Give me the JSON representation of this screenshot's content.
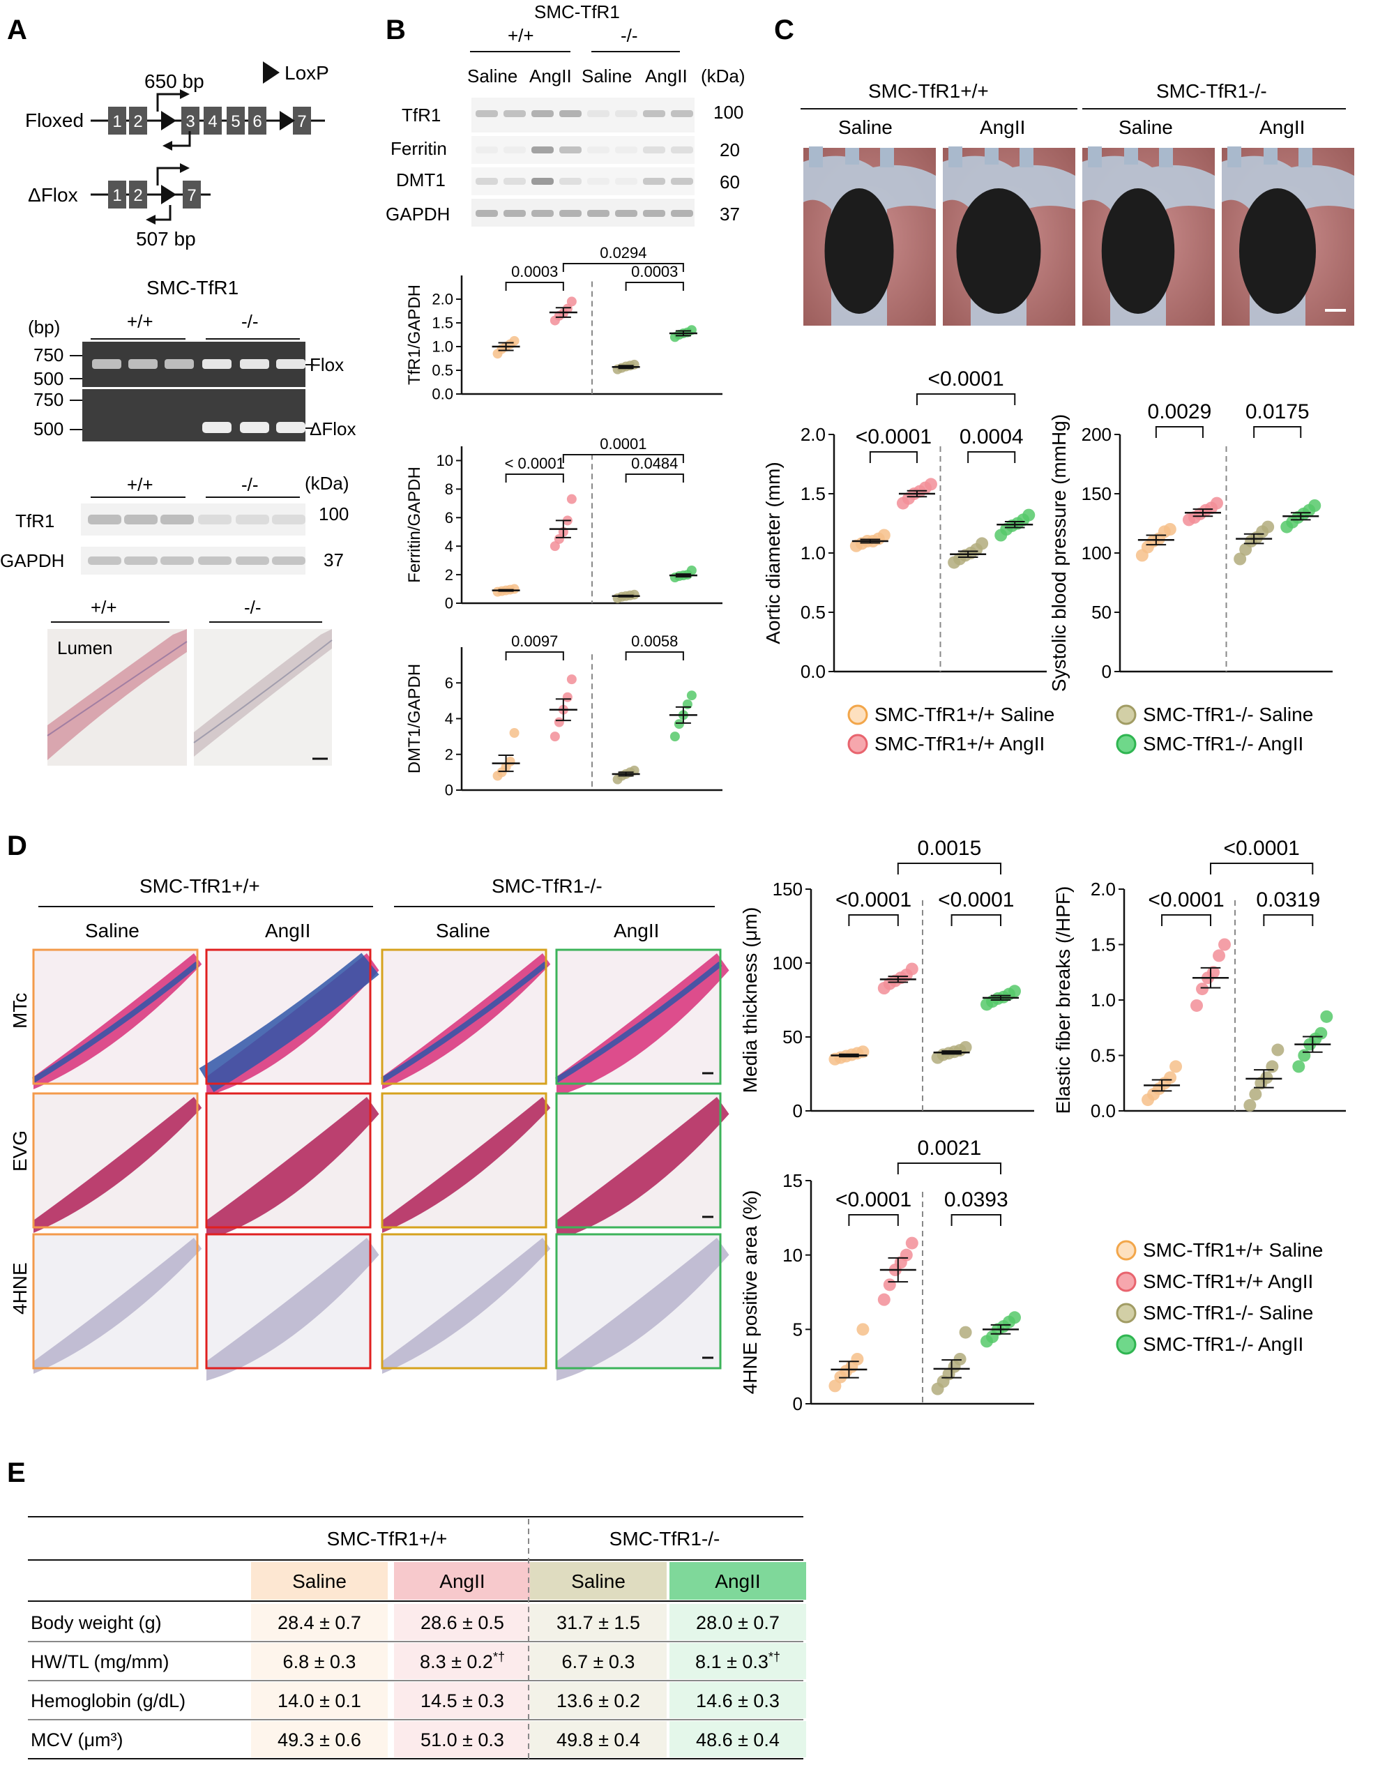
{
  "panels": {
    "a": "A",
    "b": "B",
    "c": "C",
    "d": "D",
    "e": "E"
  },
  "panelA": {
    "loxp_label": "LoxP",
    "floxed_label": "Floxed",
    "dflox_label": "ΔFlox",
    "exons_floxed": [
      "1",
      "2",
      "3",
      "4",
      "5",
      "6",
      "7"
    ],
    "exons_dflox": [
      "1",
      "2",
      "7"
    ],
    "bp650": "650 bp",
    "bp507": "507 bp",
    "smc_title": "SMC-TfR1",
    "bp_unit": "(bp)",
    "geno_wt": "+/+",
    "geno_ko": "-/-",
    "ladder1": [
      "750",
      "500"
    ],
    "ladder2": [
      "750",
      "500"
    ],
    "band_flox": "Flox",
    "band_dflox": "ΔFlox",
    "kda": "(kDa)",
    "wb_tfr1": "TfR1",
    "wb_gapdh": "GAPDH",
    "kda_tfr1": "100",
    "kda_gapdh": "37",
    "hist_wt": "+/+",
    "hist_ko": "-/-",
    "lumen": "Lumen"
  },
  "panelB": {
    "title": "SMC-TfR1",
    "geno_wt": "+/+",
    "geno_ko": "-/-",
    "lanes": [
      "Saline",
      "AngII",
      "Saline",
      "AngII"
    ],
    "kda": "(kDa)",
    "proteins": [
      "TfR1",
      "Ferritin",
      "DMT1",
      "GAPDH"
    ],
    "kdas": [
      "100",
      "20",
      "60",
      "37"
    ]
  },
  "panelC": {
    "group_wt": "SMC-TfR1+/+",
    "group_ko": "SMC-TfR1-/-",
    "treatments": [
      "Saline",
      "AngII",
      "Saline",
      "AngII"
    ]
  },
  "panelD": {
    "group_wt": "SMC-TfR1+/+",
    "group_ko": "SMC-TfR1-/-",
    "treatments": [
      "Saline",
      "AngII",
      "Saline",
      "AngII"
    ],
    "rows": [
      "MTc",
      "EVG",
      "4HNE"
    ]
  },
  "legend": {
    "items": [
      "SMC-TfR1+/+ Saline",
      "SMC-TfR1+/+ AngII",
      "SMC-TfR1-/- Saline",
      "SMC-TfR1-/- AngII"
    ],
    "fills": [
      "#fde0bf",
      "#f6a7ad",
      "#d2cfa6",
      "#6fd88a"
    ],
    "strokes": [
      "#f2a64a",
      "#e8646e",
      "#a19c64",
      "#2fb551"
    ]
  },
  "colors": {
    "orange": "#f6c08a",
    "pink": "#f28e98",
    "olive": "#b1ab7c",
    "green": "#56c96a",
    "orange_frame": "#f39a4b",
    "red_frame": "#e02020",
    "gold_frame": "#d6a21e",
    "green_frame": "#3cb35a"
  },
  "chart_data": [
    {
      "type": "scatter",
      "id": "tfr1",
      "ylabel": "TfR1/GAPDH",
      "ylim": [
        0,
        2.5
      ],
      "yticks": [
        0,
        0.5,
        1.0,
        1.5,
        2.0
      ],
      "groups": [
        "SMC-TfR1+/+ Saline",
        "SMC-TfR1+/+ AngII",
        "SMC-TfR1-/- Saline",
        "SMC-TfR1-/- AngII"
      ],
      "points": [
        [
          0.85,
          0.95,
          1.0,
          1.05,
          1.12
        ],
        [
          1.55,
          1.65,
          1.7,
          1.8,
          1.95
        ],
        [
          0.52,
          0.55,
          0.58,
          0.6,
          0.62
        ],
        [
          1.2,
          1.25,
          1.28,
          1.3,
          1.35
        ]
      ],
      "means": [
        1.0,
        1.72,
        0.57,
        1.28
      ],
      "sems": [
        0.08,
        0.1,
        0.03,
        0.05
      ],
      "comparisons": [
        {
          "g1": 0,
          "g2": 1,
          "p": "0.0003",
          "level": 0
        },
        {
          "g1": 2,
          "g2": 3,
          "p": "0.0003",
          "level": 0
        },
        {
          "g1": 1,
          "g2": 3,
          "p": "0.0294",
          "level": 1
        }
      ]
    },
    {
      "type": "scatter",
      "id": "ferritin",
      "ylabel": "Ferritin/GAPDH",
      "ylim": [
        0,
        11
      ],
      "yticks": [
        0,
        2,
        4,
        6,
        8,
        10
      ],
      "groups": [
        "SMC-TfR1+/+ Saline",
        "SMC-TfR1+/+ AngII",
        "SMC-TfR1-/- Saline",
        "SMC-TfR1-/- AngII"
      ],
      "points": [
        [
          0.8,
          0.85,
          0.9,
          0.95,
          1.0
        ],
        [
          4.0,
          4.5,
          5.0,
          5.8,
          7.3
        ],
        [
          0.35,
          0.45,
          0.5,
          0.55,
          0.6
        ],
        [
          1.8,
          1.9,
          1.95,
          2.0,
          2.3
        ]
      ],
      "means": [
        0.9,
        5.2,
        0.5,
        1.95
      ],
      "sems": [
        0.05,
        0.6,
        0.05,
        0.1
      ],
      "comparisons": [
        {
          "g1": 0,
          "g2": 1,
          "p": "< 0.0001",
          "level": 0
        },
        {
          "g1": 2,
          "g2": 3,
          "p": "0.0484",
          "level": 0
        },
        {
          "g1": 1,
          "g2": 3,
          "p": "0.0001",
          "level": 1
        }
      ]
    },
    {
      "type": "scatter",
      "id": "dmt1",
      "ylabel": "DMT1/GAPDH",
      "ylim": [
        0,
        8
      ],
      "yticks": [
        0,
        2,
        4,
        6
      ],
      "groups": [
        "SMC-TfR1+/+ Saline",
        "SMC-TfR1+/+ AngII",
        "SMC-TfR1-/- Saline",
        "SMC-TfR1-/- AngII"
      ],
      "points": [
        [
          0.8,
          1.0,
          1.3,
          1.6,
          3.2
        ],
        [
          3.0,
          3.8,
          4.5,
          5.2,
          6.2
        ],
        [
          0.6,
          0.8,
          0.9,
          1.0,
          1.1
        ],
        [
          3.0,
          3.7,
          4.2,
          4.8,
          5.3
        ]
      ],
      "means": [
        1.5,
        4.5,
        0.9,
        4.2
      ],
      "sems": [
        0.45,
        0.6,
        0.1,
        0.45
      ],
      "comparisons": [
        {
          "g1": 0,
          "g2": 1,
          "p": "0.0097",
          "level": 0
        },
        {
          "g1": 2,
          "g2": 3,
          "p": "0.0058",
          "level": 0
        }
      ]
    },
    {
      "type": "scatter",
      "id": "aortic",
      "ylabel": "Aortic diameter (mm)",
      "ylim": [
        0,
        2.0
      ],
      "yticks": [
        0.0,
        0.5,
        1.0,
        1.5,
        2.0
      ],
      "groups": [
        "SMC-TfR1+/+ Saline",
        "SMC-TfR1+/+ AngII",
        "SMC-TfR1-/- Saline",
        "SMC-TfR1-/- AngII"
      ],
      "points": [
        [
          1.06,
          1.08,
          1.1,
          1.1,
          1.12,
          1.15
        ],
        [
          1.42,
          1.46,
          1.5,
          1.52,
          1.55,
          1.58
        ],
        [
          0.92,
          0.95,
          0.98,
          1.0,
          1.03,
          1.08
        ],
        [
          1.15,
          1.2,
          1.23,
          1.25,
          1.28,
          1.32
        ]
      ],
      "means": [
        1.1,
        1.5,
        0.99,
        1.24
      ],
      "sems": [
        0.015,
        0.025,
        0.025,
        0.025
      ],
      "comparisons": [
        {
          "g1": 0,
          "g2": 1,
          "p": "<0.0001",
          "level": 0
        },
        {
          "g1": 2,
          "g2": 3,
          "p": "0.0004",
          "level": 0
        },
        {
          "g1": 1,
          "g2": 3,
          "p": "<0.0001",
          "level": 1
        }
      ]
    },
    {
      "type": "scatter",
      "id": "sbp",
      "ylabel": "Systolic blood pressure (mmHg)",
      "ylim": [
        0,
        200
      ],
      "yticks": [
        0,
        50,
        100,
        150,
        200
      ],
      "groups": [
        "SMC-TfR1+/+ Saline",
        "SMC-TfR1+/+ AngII",
        "SMC-TfR1-/- Saline",
        "SMC-TfR1-/- AngII"
      ],
      "points": [
        [
          98,
          105,
          110,
          112,
          118,
          120
        ],
        [
          128,
          130,
          133,
          136,
          138,
          142
        ],
        [
          95,
          103,
          110,
          113,
          118,
          122
        ],
        [
          122,
          126,
          130,
          133,
          136,
          140
        ]
      ],
      "means": [
        111,
        134,
        112,
        131
      ],
      "sems": [
        4,
        3,
        4,
        3
      ],
      "comparisons": [
        {
          "g1": 0,
          "g2": 1,
          "p": "0.0029",
          "level": 0
        },
        {
          "g1": 2,
          "g2": 3,
          "p": "0.0175",
          "level": 0
        }
      ]
    },
    {
      "type": "scatter",
      "id": "media",
      "ylabel": "Media thickness (μm)",
      "ylim": [
        0,
        150
      ],
      "yticks": [
        0,
        50,
        100,
        150
      ],
      "groups": [
        "SMC-TfR1+/+ Saline",
        "SMC-TfR1+/+ AngII",
        "SMC-TfR1-/- Saline",
        "SMC-TfR1-/- AngII"
      ],
      "points": [
        [
          35,
          36,
          37,
          38,
          39,
          40
        ],
        [
          83,
          86,
          88,
          90,
          92,
          96
        ],
        [
          36,
          38,
          39,
          40,
          41,
          43
        ],
        [
          72,
          74,
          76,
          77,
          79,
          81
        ]
      ],
      "means": [
        37.5,
        89,
        39.5,
        76.5
      ],
      "sems": [
        0.8,
        2,
        1,
        1.5
      ],
      "comparisons": [
        {
          "g1": 0,
          "g2": 1,
          "p": "<0.0001",
          "level": 0
        },
        {
          "g1": 2,
          "g2": 3,
          "p": "<0.0001",
          "level": 0
        },
        {
          "g1": 1,
          "g2": 3,
          "p": "0.0015",
          "level": 1
        }
      ]
    },
    {
      "type": "scatter",
      "id": "elastic",
      "ylabel": "Elastic fiber breaks (/HPF)",
      "ylim": [
        0,
        2.0
      ],
      "yticks": [
        0.0,
        0.5,
        1.0,
        1.5,
        2.0
      ],
      "groups": [
        "SMC-TfR1+/+ Saline",
        "SMC-TfR1+/+ AngII",
        "SMC-TfR1-/- Saline",
        "SMC-TfR1-/- AngII"
      ],
      "points": [
        [
          0.1,
          0.15,
          0.2,
          0.25,
          0.3,
          0.4
        ],
        [
          0.95,
          1.1,
          1.2,
          1.25,
          1.4,
          1.5
        ],
        [
          0.05,
          0.15,
          0.25,
          0.3,
          0.4,
          0.55
        ],
        [
          0.4,
          0.5,
          0.6,
          0.65,
          0.7,
          0.85
        ]
      ],
      "means": [
        0.23,
        1.2,
        0.29,
        0.6
      ],
      "sems": [
        0.05,
        0.09,
        0.08,
        0.07
      ],
      "comparisons": [
        {
          "g1": 0,
          "g2": 1,
          "p": "<0.0001",
          "level": 0
        },
        {
          "g1": 2,
          "g2": 3,
          "p": "0.0319",
          "level": 0
        },
        {
          "g1": 1,
          "g2": 3,
          "p": "<0.0001",
          "level": 1
        }
      ]
    },
    {
      "type": "scatter",
      "id": "hne",
      "ylabel": "4HNE positive area (%)",
      "ylim": [
        0,
        15
      ],
      "yticks": [
        0,
        5,
        10,
        15
      ],
      "groups": [
        "SMC-TfR1+/+ Saline",
        "SMC-TfR1+/+ AngII",
        "SMC-TfR1-/- Saline",
        "SMC-TfR1-/- AngII"
      ],
      "points": [
        [
          1.2,
          1.8,
          2.2,
          2.5,
          3.0,
          5.0
        ],
        [
          7.0,
          8.0,
          9.0,
          9.5,
          10.0,
          10.8
        ],
        [
          1.0,
          1.5,
          2.0,
          2.5,
          3.0,
          4.8
        ],
        [
          4.2,
          4.5,
          5.0,
          5.2,
          5.5,
          5.8
        ]
      ],
      "means": [
        2.3,
        9.0,
        2.35,
        5.0
      ],
      "sems": [
        0.55,
        0.8,
        0.6,
        0.3
      ],
      "comparisons": [
        {
          "g1": 0,
          "g2": 1,
          "p": "<0.0001",
          "level": 0
        },
        {
          "g1": 2,
          "g2": 3,
          "p": "0.0393",
          "level": 0
        },
        {
          "g1": 1,
          "g2": 3,
          "p": "0.0021",
          "level": 1
        }
      ]
    },
    {
      "type": "table",
      "id": "tableE",
      "group_headers": [
        "SMC-TfR1+/+",
        "SMC-TfR1-/-"
      ],
      "columns": [
        "Saline",
        "AngII",
        "Saline",
        "AngII"
      ],
      "rows": [
        {
          "label": "Body weight (g)",
          "values": [
            "28.4 ± 0.7",
            "28.6 ± 0.5",
            "31.7 ± 1.5",
            "28.0 ± 0.7"
          ],
          "marks": [
            "",
            "",
            "",
            ""
          ]
        },
        {
          "label": "HW/TL (mg/mm)",
          "values": [
            "6.8 ± 0.3",
            "8.3 ± 0.2",
            "6.7 ± 0.3",
            "8.1 ± 0.3"
          ],
          "marks": [
            "",
            "*†",
            "",
            "*†"
          ]
        },
        {
          "label": "Hemoglobin (g/dL)",
          "values": [
            "14.0 ± 0.1",
            "14.5 ± 0.3",
            "13.6 ± 0.2",
            "14.6 ± 0.3"
          ],
          "marks": [
            "",
            "",
            "",
            ""
          ]
        },
        {
          "label": "MCV (μm³)",
          "values": [
            "49.3 ± 0.6",
            "51.0 ± 0.3",
            "49.8 ± 0.4",
            "48.6 ± 0.4"
          ],
          "marks": [
            "",
            "",
            "",
            ""
          ]
        }
      ]
    }
  ]
}
